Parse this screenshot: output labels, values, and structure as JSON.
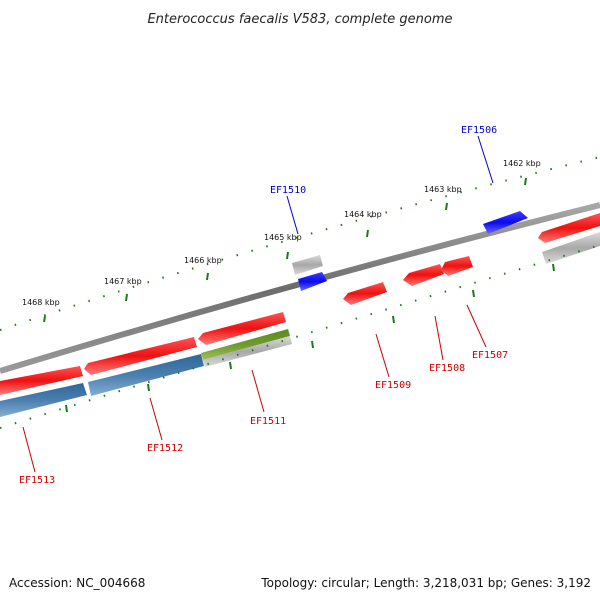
{
  "title": "Enterococcus faecalis V583, complete genome",
  "footer": {
    "accession": "Accession: NC_004668",
    "summary": "Topology: circular; Length: 3,218,031 bp; Genes: 3,192"
  },
  "kbp_ticks": [
    "1468 kbp",
    "1467 kbp",
    "1466 kbp",
    "1465 kbp",
    "1464 kbp",
    "1463 kbp",
    "1462 kbp"
  ],
  "gene_labels": [
    "EF1506",
    "EF1510",
    "EF1507",
    "EF1508",
    "EF1509",
    "EF1511",
    "EF1512",
    "EF1513"
  ],
  "colors": {
    "forward_gene": "#ee1111",
    "hypothetical": "#1111ee",
    "cog_blue": "#4a7fae",
    "cog_green": "#6f9a2e",
    "cog_grey": "#b8b8b8",
    "backbone": "#7a7a7a",
    "tick": "#1a7a1a"
  }
}
